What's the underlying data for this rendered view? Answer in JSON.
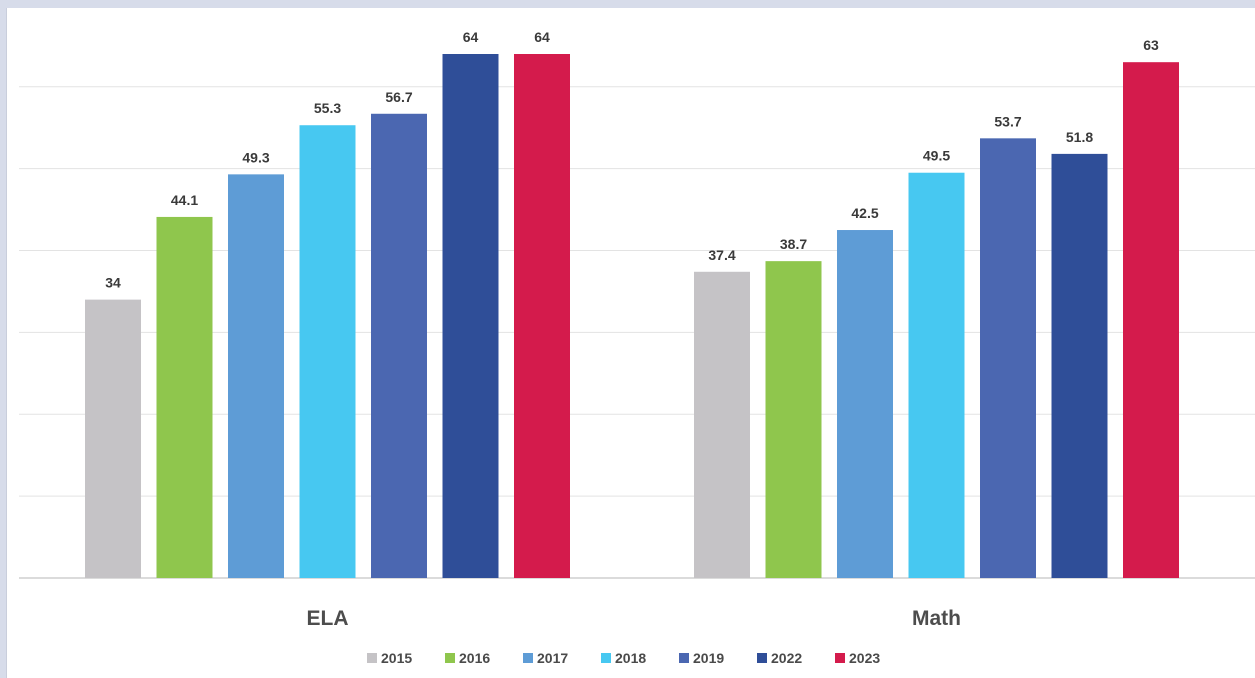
{
  "chart_data": {
    "type": "bar",
    "title": "",
    "xlabel": "",
    "ylabel": "",
    "ylim": [
      0,
      64
    ],
    "grid": true,
    "legend_position": "bottom",
    "categories": [
      "ELA",
      "Math"
    ],
    "series": [
      {
        "name": "2015",
        "color": "#c5c3c6",
        "values": [
          34,
          37.4
        ],
        "labels": [
          "34",
          "37.4"
        ]
      },
      {
        "name": "2016",
        "color": "#8fc64d",
        "values": [
          44.1,
          38.7
        ],
        "labels": [
          "44.1",
          "38.7"
        ]
      },
      {
        "name": "2017",
        "color": "#5e9cd6",
        "values": [
          49.3,
          42.5
        ],
        "labels": [
          "49.3",
          "42.5"
        ]
      },
      {
        "name": "2018",
        "color": "#47c8f1",
        "values": [
          55.3,
          49.5
        ],
        "labels": [
          "55.3",
          "49.5"
        ]
      },
      {
        "name": "2019",
        "color": "#4b67b1",
        "values": [
          56.7,
          53.7
        ],
        "labels": [
          "56.7",
          "53.7"
        ]
      },
      {
        "name": "2022",
        "color": "#2f4e98",
        "values": [
          64,
          51.8
        ],
        "labels": [
          "64",
          "51.8"
        ]
      },
      {
        "name": "2023",
        "color": "#d41b4c",
        "values": [
          64,
          63
        ],
        "labels": [
          "64",
          "63"
        ]
      }
    ]
  }
}
